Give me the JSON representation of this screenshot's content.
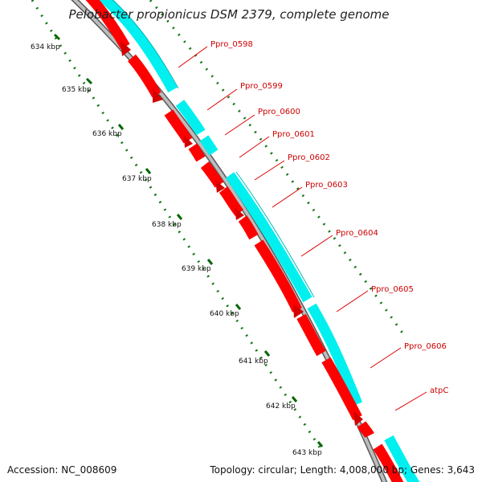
{
  "title": "Pelobacter propionicus DSM 2379, complete genome",
  "footer": {
    "accession": "Accession: NC_008609",
    "summary": "Topology: circular; Length: 4,008,000 bp; Genes: 3,643"
  },
  "scale_labels": [
    "634 kbp",
    "635 kbp",
    "636 kbp",
    "637 kbp",
    "638 kbp",
    "639 kbp",
    "640 kbp",
    "641 kbp",
    "642 kbp",
    "643 kbp"
  ],
  "gene_labels": [
    "Ppro_0598",
    "Ppro_0599",
    "Ppro_0600",
    "Ppro_0601",
    "Ppro_0602",
    "Ppro_0603",
    "Ppro_0604",
    "Ppro_0605",
    "Ppro_0606",
    "atpC"
  ],
  "colors": {
    "cds": "#ff0000",
    "cds_dark": "#c80000",
    "orf": "#00ffff",
    "backbone": "#a0a0a0",
    "ticks": "#007700",
    "label": "#cc0000"
  },
  "icons": [
    "genome-map-icon"
  ]
}
